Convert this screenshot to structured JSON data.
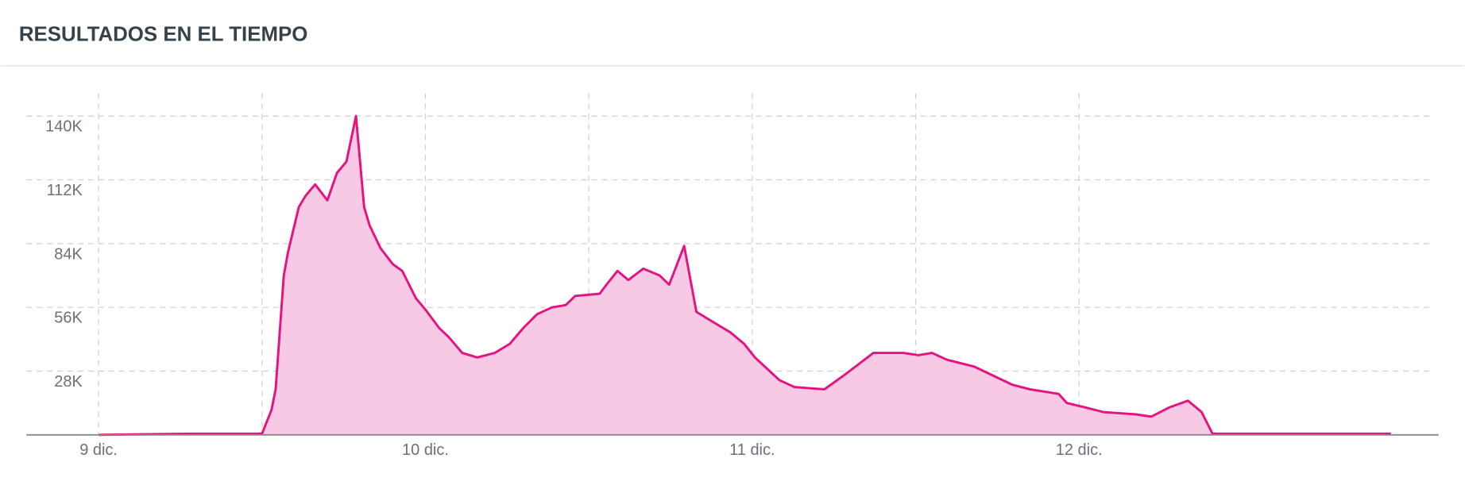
{
  "chart_data": {
    "type": "area",
    "title": "RESULTADOS EN EL TIEMPO",
    "color": "#e5127f",
    "fill": "#f8c9e4",
    "grid": true,
    "x": [
      0,
      6.9,
      12,
      12.7,
      13,
      13.6,
      13.9,
      14.7,
      15.2,
      15.9,
      16.8,
      17.5,
      18.2,
      18.9,
      19.5,
      19.9,
      20.7,
      21.6,
      22.3,
      23.3,
      24,
      25,
      25.7,
      26.7,
      27.8,
      29.1,
      30.2,
      31.2,
      32.2,
      33.3,
      34.3,
      35,
      36.8,
      37.3,
      38.1,
      38.9,
      40,
      41.2,
      41.9,
      43,
      43.9,
      45,
      46.4,
      47.4,
      48.2,
      49.1,
      50,
      51.1,
      53.3,
      54.7,
      56.9,
      59.1,
      60.2,
      61.2,
      62.3,
      64.3,
      65.7,
      67.1,
      68.4,
      70.5,
      71.1,
      72.5,
      73.8,
      76.2,
      77.3,
      78.6,
      80,
      81,
      81.8,
      94.9
    ],
    "values": [
      0,
      500,
      500,
      11000,
      20000,
      70000,
      80000,
      100000,
      105000,
      110000,
      103000,
      115000,
      120000,
      140000,
      100000,
      92000,
      82000,
      75000,
      72000,
      60000,
      55000,
      47000,
      43000,
      36000,
      34000,
      36000,
      40000,
      47000,
      53000,
      56000,
      57000,
      61000,
      62000,
      66000,
      72000,
      68000,
      73000,
      70000,
      66000,
      83000,
      54000,
      50000,
      45000,
      40000,
      34000,
      29000,
      24000,
      21000,
      20000,
      26000,
      36000,
      36000,
      35000,
      36000,
      33000,
      30000,
      26000,
      22000,
      20000,
      18000,
      14000,
      12000,
      10000,
      9000,
      8000,
      12000,
      15000,
      10000,
      500,
      500
    ],
    "xlim": [
      -5.3,
      98.4
    ],
    "xticks": [
      {
        "value": 0,
        "label": "9 dic."
      },
      {
        "value": 24,
        "label": "10 dic."
      },
      {
        "value": 48,
        "label": "11 dic."
      },
      {
        "value": 72,
        "label": "12 dic."
      }
    ],
    "xgrid": [
      0,
      12,
      24,
      36,
      48,
      60,
      72
    ],
    "ylim": [
      0,
      150000
    ],
    "yticks": [
      {
        "value": 28000,
        "label": "28K"
      },
      {
        "value": 56000,
        "label": "56K"
      },
      {
        "value": 84000,
        "label": "84K"
      },
      {
        "value": 112000,
        "label": "112K"
      },
      {
        "value": 140000,
        "label": "140K"
      }
    ]
  }
}
